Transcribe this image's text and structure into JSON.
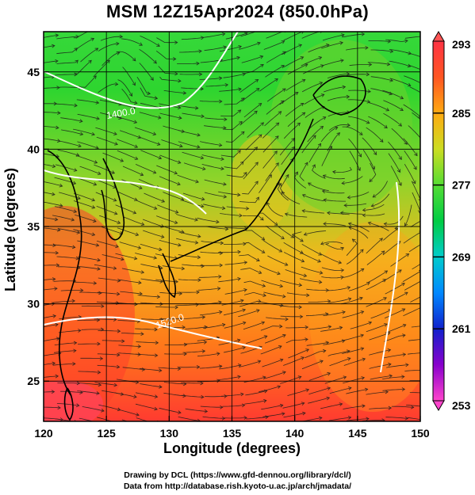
{
  "title": "MSM 12Z15Apr2024 (850.0hPa)",
  "x_axis": {
    "label": "Longitude (degrees)",
    "range": [
      120,
      150
    ],
    "ticks": [
      120,
      125,
      130,
      135,
      140,
      145,
      150
    ]
  },
  "y_axis": {
    "label": "Latitude  (degrees)",
    "range": [
      22.4,
      47.6
    ],
    "ticks": [
      25,
      30,
      35,
      40,
      45
    ]
  },
  "colorbar": {
    "min": 253,
    "max": 293,
    "labels": [
      293,
      285,
      277,
      269,
      261,
      253
    ],
    "stops": [
      "#ff44cc",
      "#8800cc",
      "#1020cc",
      "#0088ff",
      "#00cccc",
      "#00cc44",
      "#55dd33",
      "#ccdd22",
      "#ffaa11",
      "#ff5522",
      "#ff3344"
    ]
  },
  "contour_labels": [
    "1400.0",
    "1520.0"
  ],
  "credits": [
    "Drawing by DCL (https://www.gfd-dennou.org/library/dcl/)",
    "Data from http://database.rish.kyoto-u.ac.jp/arch/jmadata/"
  ],
  "chart_data": {
    "type": "heatmap",
    "variable": "temperature (K) with streamlines and height contours",
    "level": "850.0hPa",
    "time": "12Z15Apr2024",
    "xlim": [
      120,
      150
    ],
    "ylim": [
      22.4,
      47.6
    ],
    "colorbar_range": [
      253,
      293
    ],
    "grid": true
  }
}
